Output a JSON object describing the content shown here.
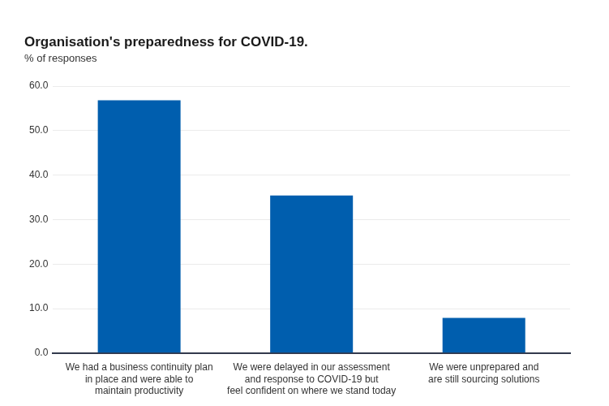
{
  "chart_data": {
    "type": "bar",
    "title": "Organisation's preparedness for COVID-19.",
    "subtitle": "% of responses",
    "categories": [
      [
        "We had a business continuity plan",
        "in place and were able to",
        "maintain productivity"
      ],
      [
        "We were delayed in our assessment",
        "and response to COVID-19 but",
        "feel confident on where we stand today"
      ],
      [
        "We were unprepared and",
        "are still sourcing solutions"
      ]
    ],
    "values": [
      56.8,
      35.4,
      7.9
    ],
    "color": "#005eae",
    "ylim": [
      0,
      60
    ],
    "yticks": [
      {
        "value": 0,
        "label": "0.0"
      },
      {
        "value": 10,
        "label": "10.0"
      },
      {
        "value": 20,
        "label": "20.0"
      },
      {
        "value": 30,
        "label": "30.0"
      },
      {
        "value": 40,
        "label": "40.0"
      },
      {
        "value": 50,
        "label": "50.0"
      },
      {
        "value": 60,
        "label": "60.0"
      }
    ],
    "grid": true
  }
}
